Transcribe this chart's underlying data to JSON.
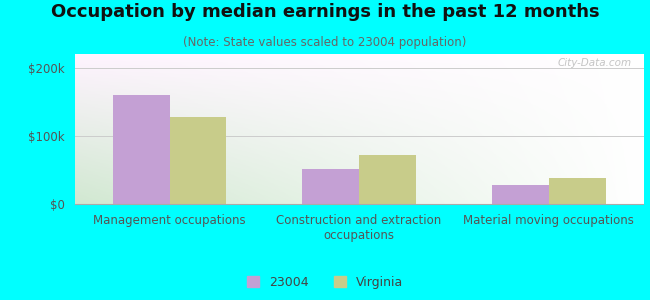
{
  "title": "Occupation by median earnings in the past 12 months",
  "subtitle": "(Note: State values scaled to 23004 population)",
  "categories": [
    "Management occupations",
    "Construction and extraction\noccupations",
    "Material moving occupations"
  ],
  "values_23004": [
    160000,
    52000,
    28000
  ],
  "values_virginia": [
    128000,
    72000,
    38000
  ],
  "color_23004": "#c4a0d4",
  "color_virginia": "#c8cc8a",
  "ylim": [
    0,
    220000
  ],
  "yticks": [
    0,
    100000,
    200000
  ],
  "ytick_labels": [
    "$0",
    "$100k",
    "$200k"
  ],
  "bg_top_left": "#d8eedc",
  "bg_top_right": "#f0f0f0",
  "bg_bottom_left": "#d0e8d0",
  "bg_bottom_right": "#ffffff",
  "outer_background": "#00ffff",
  "legend_label_23004": "23004",
  "legend_label_virginia": "Virginia",
  "bar_width": 0.3,
  "title_fontsize": 13,
  "subtitle_fontsize": 8.5,
  "axis_label_fontsize": 8.5,
  "legend_fontsize": 9,
  "watermark": "City-Data.com"
}
